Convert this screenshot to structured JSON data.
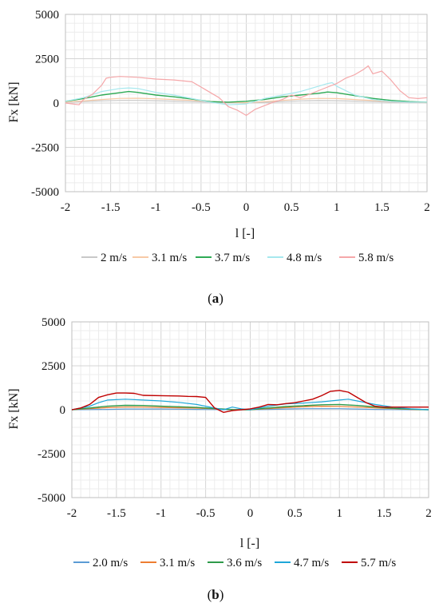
{
  "chart_data": [
    {
      "type": "line",
      "panel_label_letter": "a",
      "xlabel": "l [-]",
      "ylabel": "Fx [kN]",
      "xlim": [
        -2,
        2
      ],
      "ylim": [
        -5000,
        5000
      ],
      "x_ticks": [
        "-2",
        "-1.5",
        "-1",
        "-0.5",
        "0",
        "0.5",
        "1",
        "1.5",
        "2"
      ],
      "y_ticks": [
        "5000",
        "2500",
        "0",
        "-2500",
        "-5000"
      ],
      "grid": true,
      "legend_position": "bottom",
      "series": [
        {
          "name": "2 m/s",
          "color": "#c8c8c8",
          "x": [
            -2,
            -1.8,
            -1.6,
            -1.4,
            -1.2,
            -1,
            -0.8,
            -0.6,
            -0.4,
            -0.2,
            0,
            0.2,
            0.4,
            0.6,
            0.8,
            1,
            1.2,
            1.4,
            1.6,
            1.8,
            2
          ],
          "y": [
            50,
            80,
            120,
            150,
            150,
            130,
            110,
            80,
            50,
            20,
            0,
            40,
            80,
            120,
            140,
            130,
            110,
            80,
            50,
            30,
            20
          ]
        },
        {
          "name": "3.1 m/s",
          "color": "#f7c9a6",
          "x": [
            -2,
            -1.8,
            -1.6,
            -1.4,
            -1.2,
            -1,
            -0.8,
            -0.6,
            -0.4,
            -0.2,
            0,
            0.2,
            0.4,
            0.6,
            0.8,
            1,
            1.2,
            1.4,
            1.6,
            1.8,
            2
          ],
          "y": [
            60,
            120,
            200,
            260,
            270,
            240,
            200,
            150,
            90,
            40,
            20,
            80,
            150,
            220,
            260,
            250,
            200,
            140,
            90,
            50,
            30
          ]
        },
        {
          "name": "3.7 m/s",
          "color": "#2eaa55",
          "x": [
            -2,
            -1.8,
            -1.6,
            -1.4,
            -1.3,
            -1.2,
            -1,
            -0.8,
            -0.6,
            -0.4,
            -0.2,
            0,
            0.2,
            0.4,
            0.6,
            0.8,
            0.9,
            1,
            1.2,
            1.4,
            1.6,
            1.8,
            2
          ],
          "y": [
            100,
            250,
            450,
            580,
            650,
            600,
            450,
            350,
            220,
            80,
            50,
            100,
            200,
            350,
            450,
            550,
            620,
            580,
            420,
            260,
            150,
            80,
            50
          ]
        },
        {
          "name": "4.8 m/s",
          "color": "#a6e8ee",
          "x": [
            -2,
            -1.8,
            -1.6,
            -1.4,
            -1.3,
            -1.2,
            -1,
            -0.8,
            -0.6,
            -0.4,
            -0.2,
            0,
            0.2,
            0.4,
            0.6,
            0.8,
            0.9,
            0.95,
            1,
            1.2,
            1.4,
            1.6,
            1.8,
            2
          ],
          "y": [
            100,
            300,
            650,
            820,
            850,
            820,
            600,
            450,
            250,
            50,
            -100,
            -50,
            250,
            450,
            650,
            950,
            1100,
            1150,
            950,
            450,
            200,
            100,
            50,
            50
          ]
        },
        {
          "name": "5.8 m/s",
          "color": "#f5a7a9",
          "x": [
            -2,
            -1.85,
            -1.8,
            -1.7,
            -1.6,
            -1.55,
            -1.5,
            -1.4,
            -1.2,
            -1,
            -0.8,
            -0.6,
            -0.5,
            -0.4,
            -0.3,
            -0.2,
            -0.1,
            0,
            0.1,
            0.2,
            0.3,
            0.4,
            0.5,
            0.6,
            0.7,
            0.8,
            0.9,
            1,
            1.1,
            1.2,
            1.3,
            1.35,
            1.4,
            1.5,
            1.6,
            1.7,
            1.8,
            1.9,
            2
          ],
          "y": [
            0,
            -100,
            200,
            500,
            1000,
            1400,
            1450,
            1500,
            1450,
            1350,
            1300,
            1200,
            900,
            600,
            300,
            -200,
            -400,
            -700,
            -350,
            -150,
            50,
            200,
            450,
            300,
            500,
            700,
            900,
            1100,
            1400,
            1600,
            1900,
            2100,
            1650,
            1800,
            1300,
            700,
            300,
            250,
            300
          ]
        }
      ]
    },
    {
      "type": "line",
      "panel_label_letter": "b",
      "xlabel": "l [-]",
      "ylabel": "Fx [kN]",
      "xlim": [
        -2,
        2
      ],
      "ylim": [
        -5000,
        5000
      ],
      "x_ticks": [
        "-2",
        "-1.5",
        "-1",
        "-0.5",
        "0",
        "0.5",
        "1",
        "1.5",
        "2"
      ],
      "y_ticks": [
        "5000",
        "2500",
        "0",
        "-2500",
        "-5000"
      ],
      "grid": true,
      "legend_position": "bottom",
      "series": [
        {
          "name": "2.0 m/s",
          "color": "#5b9bd5",
          "x": [
            -2,
            -1.6,
            -1.4,
            -1.2,
            -1,
            -0.8,
            -0.6,
            -0.4,
            -0.2,
            0,
            0.2,
            0.4,
            0.6,
            0.8,
            1,
            1.2,
            1.4,
            1.6,
            1.8,
            2
          ],
          "y": [
            0,
            20,
            40,
            40,
            40,
            30,
            20,
            10,
            0,
            0,
            20,
            40,
            60,
            60,
            60,
            40,
            20,
            10,
            0,
            0
          ]
        },
        {
          "name": "3.1 m/s",
          "color": "#ed7d31",
          "x": [
            -2,
            -1.8,
            -1.6,
            -1.4,
            -1.2,
            -1,
            -0.8,
            -0.6,
            -0.4,
            -0.2,
            0,
            0.2,
            0.4,
            0.6,
            0.8,
            1,
            1.2,
            1.4,
            1.6,
            1.8,
            2
          ],
          "y": [
            0,
            60,
            120,
            150,
            150,
            130,
            110,
            90,
            50,
            10,
            0,
            60,
            120,
            170,
            200,
            190,
            150,
            100,
            60,
            20,
            0
          ]
        },
        {
          "name": "3.6 m/s",
          "color": "#2e9a4a",
          "x": [
            -2,
            -1.8,
            -1.6,
            -1.4,
            -1.2,
            -1,
            -0.8,
            -0.6,
            -0.4,
            -0.2,
            0,
            0.2,
            0.4,
            0.6,
            0.8,
            1,
            1.2,
            1.4,
            1.6,
            1.8,
            2
          ],
          "y": [
            0,
            100,
            200,
            250,
            240,
            200,
            170,
            130,
            70,
            10,
            0,
            100,
            180,
            230,
            280,
            300,
            240,
            160,
            80,
            30,
            0
          ]
        },
        {
          "name": "4.7 m/s",
          "color": "#1ea7d8",
          "x": [
            -2,
            -1.8,
            -1.7,
            -1.6,
            -1.4,
            -1.2,
            -1,
            -0.8,
            -0.6,
            -0.5,
            -0.4,
            -0.3,
            -0.2,
            -0.1,
            0,
            0.2,
            0.4,
            0.6,
            0.8,
            1,
            1.1,
            1.2,
            1.4,
            1.6,
            1.8,
            2
          ],
          "y": [
            0,
            200,
            400,
            550,
            600,
            550,
            500,
            420,
            300,
            200,
            100,
            0,
            150,
            50,
            0,
            200,
            330,
            380,
            450,
            550,
            600,
            500,
            300,
            150,
            50,
            0
          ]
        },
        {
          "name": "5.7 m/s",
          "color": "#c00000",
          "x": [
            -2,
            -1.9,
            -1.8,
            -1.7,
            -1.6,
            -1.5,
            -1.4,
            -1.3,
            -1.2,
            -1,
            -0.8,
            -0.7,
            -0.6,
            -0.5,
            -0.45,
            -0.4,
            -0.3,
            -0.2,
            -0.1,
            0,
            0.1,
            0.2,
            0.3,
            0.4,
            0.5,
            0.6,
            0.7,
            0.8,
            0.9,
            1,
            1.1,
            1.2,
            1.3,
            1.4,
            1.5,
            1.6,
            1.8,
            2
          ],
          "y": [
            0,
            100,
            300,
            700,
            850,
            950,
            950,
            930,
            820,
            800,
            780,
            760,
            750,
            700,
            400,
            100,
            -150,
            -50,
            0,
            50,
            150,
            300,
            280,
            350,
            400,
            500,
            600,
            800,
            1050,
            1100,
            1000,
            700,
            400,
            200,
            150,
            150,
            150,
            150
          ]
        }
      ]
    }
  ]
}
